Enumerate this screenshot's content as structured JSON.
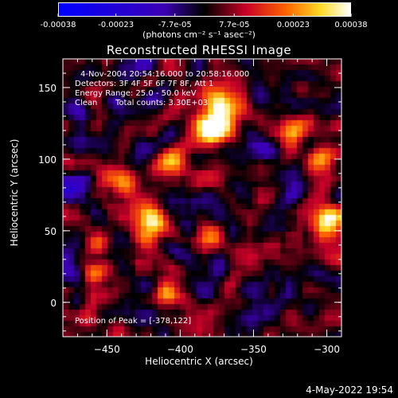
{
  "colorbar": {
    "tick_labels": [
      "-0.00038",
      "-0.00023",
      "-7.7e-05",
      "7.7e-05",
      "0.00023",
      "0.00038"
    ],
    "range": [
      -0.00038,
      0.00038
    ],
    "units": "(photons cm⁻² s⁻¹ asec⁻²)"
  },
  "chart_data": {
    "type": "heatmap",
    "title": "Reconstructed RHESSI Image",
    "xlabel": "Heliocentric X (arcsec)",
    "ylabel": "Heliocentric Y (arcsec)",
    "xlim": [
      -480,
      -290
    ],
    "ylim": [
      -24,
      170
    ],
    "xticks": [
      -450,
      -400,
      -350,
      -300
    ],
    "yticks": [
      0,
      50,
      100,
      150
    ],
    "colormap": "blue-black-red-yellow-white",
    "peak": [
      -378,
      122
    ],
    "annotations": {
      "time_range": "4-Nov-2004 20:54:16.000 to 20:58:16.000",
      "detectors": "Detectors: 3F 4F 5F 6F 7F 8F, Att 1",
      "energy": "Energy Range: 25.0 - 50.0 keV",
      "method": "Clean",
      "counts": "Total counts: 3.30E+03",
      "peak_label": "Position of Peak = [-378,122]"
    }
  },
  "timestamp": "4-May-2022 19:54"
}
